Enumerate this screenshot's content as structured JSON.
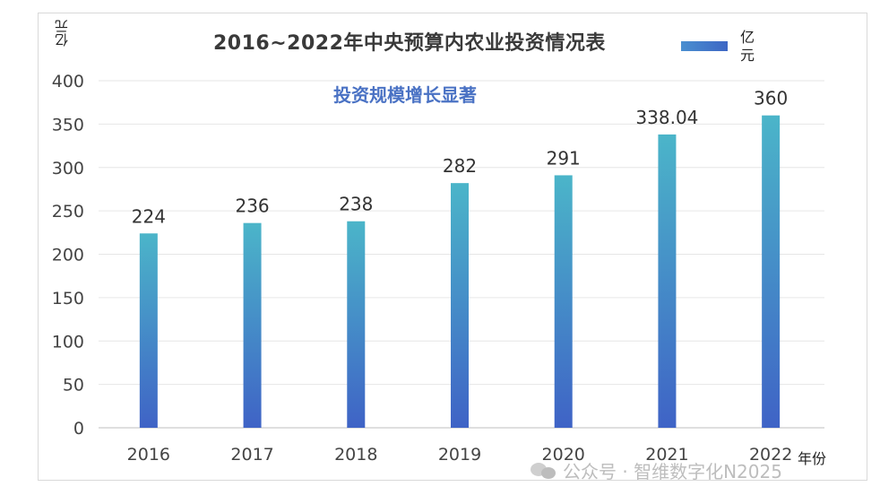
{
  "chart_data": {
    "type": "bar",
    "title": "2016~2022年中央预算内农业投资情况表",
    "subtitle": "投资规模增长显著",
    "ylabel": "亿元",
    "xlabel": "年份",
    "legend": {
      "label": "亿元",
      "placement": "top-right"
    },
    "categories": [
      "2016",
      "2017",
      "2018",
      "2019",
      "2020",
      "2021",
      "2022"
    ],
    "values": [
      224,
      236,
      238,
      282,
      291,
      338.04,
      360
    ],
    "data_labels": [
      "224",
      "236",
      "238",
      "282",
      "291",
      "338.04",
      "360"
    ],
    "ylim": [
      0,
      400
    ],
    "yticks": [
      0,
      50,
      100,
      150,
      200,
      250,
      300,
      350,
      400
    ],
    "grid": true,
    "bar_gradient": {
      "top": "#4bb5c9",
      "bottom": "#3f63c6"
    }
  },
  "watermark": "公众号 · 智维数字化N2025"
}
